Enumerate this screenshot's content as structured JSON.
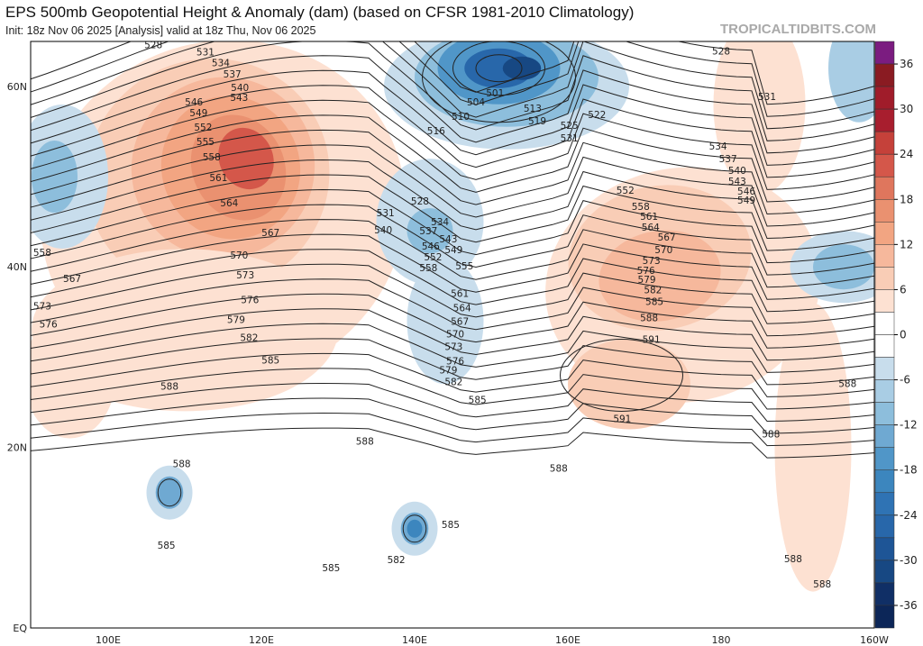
{
  "header": {
    "title": "EPS 500mb Geopotential Height & Anomaly (dam) (based on CFSR 1981-2010 Climatology)",
    "subtitle": "Init: 18z Nov 06 2025   [Analysis]   valid at 18z Thu, Nov 06 2025",
    "brand": "TROPICALTIDBITS.COM"
  },
  "map": {
    "lon_ticks": [
      {
        "lon": 100,
        "label": "100E"
      },
      {
        "lon": 120,
        "label": "120E"
      },
      {
        "lon": 140,
        "label": "140E"
      },
      {
        "lon": 160,
        "label": "160E"
      },
      {
        "lon": 180,
        "label": "180"
      },
      {
        "lon": 200,
        "label": "160W"
      }
    ],
    "lat_ticks": [
      {
        "lat": 60,
        "label": "60N"
      },
      {
        "lat": 40,
        "label": "40N"
      },
      {
        "lat": 20,
        "label": "20N"
      },
      {
        "lat": 0,
        "label": "EQ"
      }
    ],
    "contour_labels": [
      [
        "528",
        105.9,
        64.6
      ],
      [
        "531",
        112.7,
        63.8
      ],
      [
        "534",
        114.7,
        62.6
      ],
      [
        "537",
        116.2,
        61.4
      ],
      [
        "540",
        117.2,
        59.9
      ],
      [
        "543",
        117.1,
        58.8
      ],
      [
        "546",
        111.2,
        58.3
      ],
      [
        "549",
        111.8,
        57.1
      ],
      [
        "552",
        112.4,
        55.5
      ],
      [
        "555",
        112.7,
        53.9
      ],
      [
        "558",
        113.5,
        52.2
      ],
      [
        "561",
        114.4,
        49.9
      ],
      [
        "564",
        115.8,
        47.1
      ],
      [
        "567",
        121.2,
        43.8
      ],
      [
        "570",
        117.1,
        41.3
      ],
      [
        "573",
        117.9,
        39.1
      ],
      [
        "576",
        118.5,
        36.4
      ],
      [
        "579",
        116.7,
        34.2
      ],
      [
        "582",
        118.4,
        32.2
      ],
      [
        "585",
        121.2,
        29.7
      ],
      [
        "588",
        108,
        26.8
      ],
      [
        "558",
        91.4,
        41.6
      ],
      [
        "567",
        95.3,
        38.7
      ],
      [
        "573",
        91.4,
        35.7
      ],
      [
        "576",
        92.2,
        33.7
      ],
      [
        "501",
        150.5,
        59.3
      ],
      [
        "504",
        148,
        58.3
      ],
      [
        "510",
        146,
        56.7
      ],
      [
        "513",
        155.4,
        57.6
      ],
      [
        "516",
        142.8,
        55.1
      ],
      [
        "519",
        156,
        56.2
      ],
      [
        "522",
        163.8,
        56.9
      ],
      [
        "525",
        160.2,
        55.7
      ],
      [
        "531",
        160.2,
        54.3
      ],
      [
        "528",
        180,
        63.9
      ],
      [
        "531",
        186,
        58.9
      ],
      [
        "534",
        179.6,
        53.4
      ],
      [
        "537",
        180.9,
        52
      ],
      [
        "540",
        182.1,
        50.7
      ],
      [
        "543",
        182.1,
        49.5
      ],
      [
        "546",
        183.3,
        48.4
      ],
      [
        "549",
        183.3,
        47.4
      ],
      [
        "552",
        167.5,
        48.5
      ],
      [
        "558",
        169.5,
        46.7
      ],
      [
        "561",
        170.6,
        45.6
      ],
      [
        "564",
        170.8,
        44.4
      ],
      [
        "567",
        172.9,
        43.3
      ],
      [
        "570",
        172.5,
        41.9
      ],
      [
        "573",
        170.9,
        40.7
      ],
      [
        "576",
        170.2,
        39.6
      ],
      [
        "579",
        170.3,
        38.6
      ],
      [
        "582",
        171.1,
        37.5
      ],
      [
        "585",
        171.3,
        36.2
      ],
      [
        "588",
        170.6,
        34.4
      ],
      [
        "591",
        170.9,
        32
      ],
      [
        "591",
        167.1,
        23.2
      ],
      [
        "588",
        196.5,
        27.1
      ],
      [
        "588",
        186.5,
        21.5
      ],
      [
        "588",
        158.8,
        17.7
      ],
      [
        "588",
        189.4,
        7.7
      ],
      [
        "588",
        193.2,
        4.9
      ],
      [
        "528",
        140.7,
        47.3
      ],
      [
        "531",
        136.2,
        46
      ],
      [
        "534",
        143.3,
        45
      ],
      [
        "537",
        141.8,
        44
      ],
      [
        "540",
        135.9,
        44.1
      ],
      [
        "543",
        144.4,
        43.1
      ],
      [
        "546",
        142.1,
        42.3
      ],
      [
        "549",
        145.1,
        41.9
      ],
      [
        "552",
        142.4,
        41.1
      ],
      [
        "555",
        146.5,
        40.1
      ],
      [
        "558",
        141.8,
        39.9
      ],
      [
        "561",
        145.9,
        37.1
      ],
      [
        "564",
        146.2,
        35.5
      ],
      [
        "567",
        145.9,
        34
      ],
      [
        "570",
        145.3,
        32.6
      ],
      [
        "573",
        145.1,
        31.2
      ],
      [
        "576",
        145.3,
        29.6
      ],
      [
        "579",
        144.4,
        28.6
      ],
      [
        "582",
        145.1,
        27.3
      ],
      [
        "585",
        148.2,
        25.3
      ],
      [
        "588",
        133.5,
        20.7
      ],
      [
        "588",
        109.6,
        18.2
      ],
      [
        "585",
        107.6,
        9.2
      ],
      [
        "585",
        129.1,
        6.7
      ],
      [
        "582",
        137.6,
        7.6
      ],
      [
        "585",
        144.7,
        11.5
      ]
    ]
  },
  "colorbar": {
    "labels": [
      "36",
      "30",
      "24",
      "18",
      "12",
      "6",
      "0",
      "-6",
      "-12",
      "-18",
      "-24",
      "-30",
      "-36"
    ],
    "colors": [
      "#7b1c80",
      "#8a1b22",
      "#a01c2a",
      "#a81e2e",
      "#c5413a",
      "#d4574a",
      "#df765d",
      "#ea9170",
      "#f2a582",
      "#f6b89c",
      "#f9cdb6",
      "#fde1d2",
      "#ffffff",
      "#ffffff",
      "#c8ddec",
      "#a9cde4",
      "#8dbedc",
      "#6fa9d2",
      "#5096c8",
      "#3c86be",
      "#2f73b4",
      "#2867aa",
      "#1e5596",
      "#174883",
      "#102f66",
      "#0c2658"
    ]
  }
}
